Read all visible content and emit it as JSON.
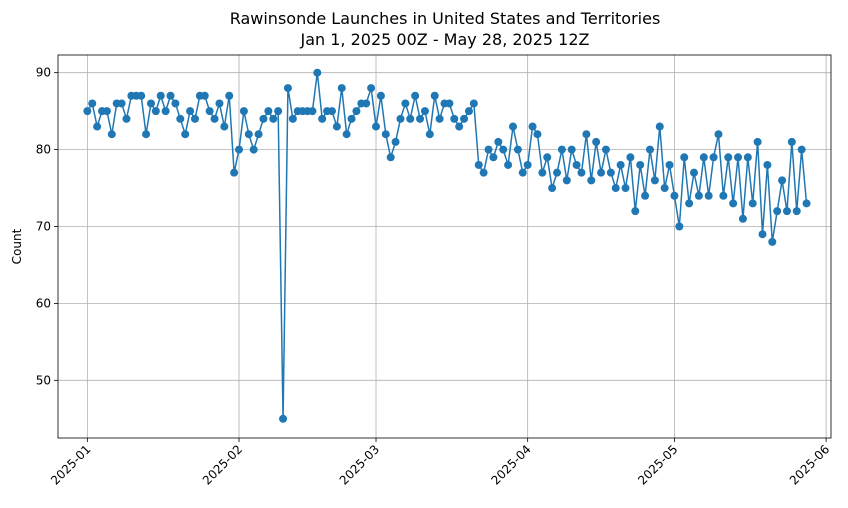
{
  "chart_data": {
    "type": "line",
    "title": "Rawinsonde Launches in United States and Territories",
    "subtitle": "Jan 1, 2025 00Z - May 28, 2025 12Z",
    "xlabel": "",
    "ylabel": "Count",
    "xlim": [
      "2024-12-26",
      "2025-06-02"
    ],
    "ylim": [
      42.5,
      92.3
    ],
    "grid": true,
    "x_ticks": [
      "2025-01",
      "2025-02",
      "2025-03",
      "2025-04",
      "2025-05",
      "2025-06"
    ],
    "y_ticks": [
      50,
      60,
      70,
      80,
      90
    ],
    "series": [
      {
        "color": "#1f77b4",
        "marker": "circle",
        "x": [
          "2025-01-01",
          "2025-01-02",
          "2025-01-03",
          "2025-01-04",
          "2025-01-05",
          "2025-01-06",
          "2025-01-07",
          "2025-01-08",
          "2025-01-09",
          "2025-01-10",
          "2025-01-11",
          "2025-01-12",
          "2025-01-13",
          "2025-01-14",
          "2025-01-15",
          "2025-01-16",
          "2025-01-17",
          "2025-01-18",
          "2025-01-19",
          "2025-01-20",
          "2025-01-21",
          "2025-01-22",
          "2025-01-23",
          "2025-01-24",
          "2025-01-25",
          "2025-01-26",
          "2025-01-27",
          "2025-01-28",
          "2025-01-29",
          "2025-01-30",
          "2025-01-31",
          "2025-02-01",
          "2025-02-02",
          "2025-02-03",
          "2025-02-04",
          "2025-02-05",
          "2025-02-06",
          "2025-02-07",
          "2025-02-08",
          "2025-02-09",
          "2025-02-10",
          "2025-02-11",
          "2025-02-12",
          "2025-02-13",
          "2025-02-14",
          "2025-02-15",
          "2025-02-16",
          "2025-02-17",
          "2025-02-18",
          "2025-02-19",
          "2025-02-20",
          "2025-02-21",
          "2025-02-22",
          "2025-02-23",
          "2025-02-24",
          "2025-02-25",
          "2025-02-26",
          "2025-02-27",
          "2025-02-28",
          "2025-03-01",
          "2025-03-02",
          "2025-03-03",
          "2025-03-04",
          "2025-03-05",
          "2025-03-06",
          "2025-03-07",
          "2025-03-08",
          "2025-03-09",
          "2025-03-10",
          "2025-03-11",
          "2025-03-12",
          "2025-03-13",
          "2025-03-14",
          "2025-03-15",
          "2025-03-16",
          "2025-03-17",
          "2025-03-18",
          "2025-03-19",
          "2025-03-20",
          "2025-03-21",
          "2025-03-22",
          "2025-03-23",
          "2025-03-24",
          "2025-03-25",
          "2025-03-26",
          "2025-03-27",
          "2025-03-28",
          "2025-03-29",
          "2025-03-30",
          "2025-03-31",
          "2025-04-01",
          "2025-04-02",
          "2025-04-03",
          "2025-04-04",
          "2025-04-05",
          "2025-04-06",
          "2025-04-07",
          "2025-04-08",
          "2025-04-09",
          "2025-04-10",
          "2025-04-11",
          "2025-04-12",
          "2025-04-13",
          "2025-04-14",
          "2025-04-15",
          "2025-04-16",
          "2025-04-17",
          "2025-04-18",
          "2025-04-19",
          "2025-04-20",
          "2025-04-21",
          "2025-04-22",
          "2025-04-23",
          "2025-04-24",
          "2025-04-25",
          "2025-04-26",
          "2025-04-27",
          "2025-04-28",
          "2025-04-29",
          "2025-04-30",
          "2025-05-01",
          "2025-05-02",
          "2025-05-03",
          "2025-05-04",
          "2025-05-05",
          "2025-05-06",
          "2025-05-07",
          "2025-05-08",
          "2025-05-09",
          "2025-05-10",
          "2025-05-11",
          "2025-05-12",
          "2025-05-13",
          "2025-05-14",
          "2025-05-15",
          "2025-05-16",
          "2025-05-17",
          "2025-05-18",
          "2025-05-19",
          "2025-05-20",
          "2025-05-21",
          "2025-05-22",
          "2025-05-23",
          "2025-05-24",
          "2025-05-25",
          "2025-05-26",
          "2025-05-27",
          "2025-05-28"
        ],
        "values": [
          85,
          86,
          83,
          85,
          85,
          82,
          86,
          86,
          84,
          87,
          87,
          87,
          82,
          86,
          85,
          87,
          85,
          87,
          86,
          84,
          82,
          85,
          84,
          87,
          87,
          85,
          84,
          86,
          83,
          87,
          77,
          80,
          85,
          82,
          80,
          82,
          84,
          85,
          84,
          85,
          45,
          88,
          84,
          85,
          85,
          85,
          85,
          90,
          84,
          85,
          85,
          83,
          88,
          82,
          84,
          85,
          86,
          86,
          88,
          83,
          87,
          82,
          79,
          81,
          84,
          86,
          84,
          87,
          84,
          85,
          82,
          87,
          84,
          86,
          86,
          84,
          83,
          84,
          85,
          86,
          78,
          77,
          80,
          79,
          81,
          80,
          78,
          83,
          80,
          77,
          78,
          83,
          82,
          77,
          79,
          75,
          77,
          80,
          76,
          80,
          78,
          77,
          82,
          76,
          81,
          77,
          80,
          77,
          75,
          78,
          75,
          79,
          72,
          78,
          74,
          80,
          76,
          83,
          75,
          78,
          74,
          70,
          79,
          73,
          77,
          74,
          79,
          74,
          79,
          82,
          74,
          79,
          73,
          79,
          71,
          79,
          73,
          81,
          69,
          78,
          68,
          72,
          76,
          72,
          81,
          72,
          80,
          73
        ]
      }
    ]
  }
}
